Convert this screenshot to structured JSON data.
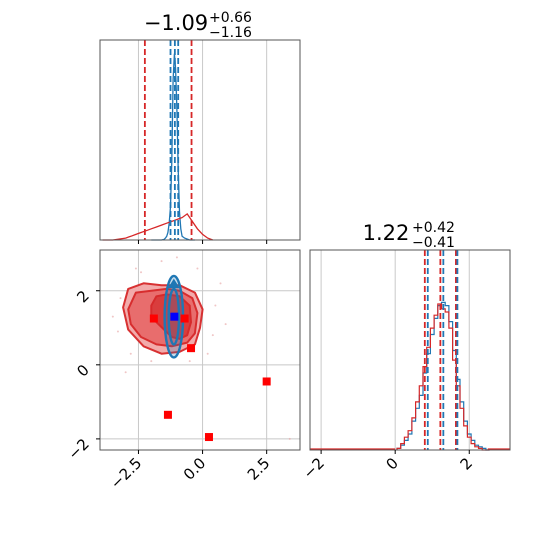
{
  "chart_data": {
    "type": "corner",
    "colors": {
      "blue": "#1f77b4",
      "red": "#d62728",
      "marker_red": "#ff0000",
      "marker_blue": "#0000ff",
      "grid": "#c8c8c8"
    },
    "panels": [
      {
        "kind": "histogram",
        "title": {
          "value": "−1.09",
          "sup": "+0.66",
          "sub": "−1.16"
        },
        "xlim": [
          -4.0,
          3.8
        ],
        "series": [
          {
            "name": "blue",
            "bin_centers": [
              -2.0,
              -1.8,
              -1.6,
              -1.5,
              -1.45,
              -1.4,
              -1.35,
              -1.3,
              -1.25,
              -1.2,
              -1.15,
              -1.1,
              -1.05,
              -1.0,
              -0.95,
              -0.9,
              -0.85,
              -0.8,
              -0.7,
              -0.5,
              -0.3
            ],
            "counts": [
              0,
              0,
              0,
              0.3,
              1,
              2,
              4,
              9,
              18,
              42,
              86,
              100,
              92,
              70,
              38,
              15,
              6,
              2,
              1,
              0,
              0
            ]
          },
          {
            "name": "red",
            "bin_centers": [
              -3.9,
              -3.5,
              -3.0,
              -2.8,
              -2.6,
              -2.4,
              -2.2,
              -2.0,
              -1.8,
              -1.6,
              -1.4,
              -1.2,
              -1.0,
              -0.8,
              -0.6,
              -0.4,
              -0.2,
              0.0,
              0.2,
              0.4
            ],
            "counts": [
              0,
              0,
              1,
              2,
              3,
              4,
              5,
              6,
              7,
              8,
              9,
              10,
              11,
              12,
              14,
              10,
              6,
              3,
              1,
              0
            ]
          }
        ],
        "vlines": [
          {
            "value": -2.25,
            "color": "red"
          },
          {
            "value": -0.43,
            "color": "red"
          },
          {
            "value": -1.25,
            "color": "blue"
          },
          {
            "value": -1.08,
            "color": "blue"
          },
          {
            "value": -0.95,
            "color": "blue"
          }
        ]
      },
      {
        "kind": "scatter2d",
        "xlim": [
          -4.0,
          3.8
        ],
        "ylim": [
          -2.3,
          3.1
        ],
        "xticks": [
          -2.5,
          0.0,
          2.5
        ],
        "xtick_labels": [
          "−2.5",
          "0.0",
          "2.5"
        ],
        "yticks": [
          -2,
          0,
          2
        ],
        "ytick_labels": [
          "−2",
          "0",
          "2"
        ],
        "red_contours": [
          {
            "level": "outer",
            "points": [
              [
                -3.1,
                1.55
              ],
              [
                -2.9,
                2.05
              ],
              [
                -2.3,
                2.2
              ],
              [
                -1.6,
                2.15
              ],
              [
                -0.9,
                2.15
              ],
              [
                -0.3,
                1.95
              ],
              [
                0.0,
                1.5
              ],
              [
                -0.1,
                1.0
              ],
              [
                -0.3,
                0.55
              ],
              [
                -0.9,
                0.35
              ],
              [
                -1.6,
                0.3
              ],
              [
                -2.3,
                0.5
              ],
              [
                -2.9,
                0.95
              ]
            ]
          },
          {
            "level": "middle",
            "points": [
              [
                -2.9,
                1.5
              ],
              [
                -2.6,
                1.95
              ],
              [
                -2.0,
                2.0
              ],
              [
                -1.4,
                2.05
              ],
              [
                -0.9,
                2.0
              ],
              [
                -0.4,
                1.8
              ],
              [
                -0.2,
                1.4
              ],
              [
                -0.3,
                0.85
              ],
              [
                -0.6,
                0.6
              ],
              [
                -1.2,
                0.5
              ],
              [
                -1.8,
                0.55
              ],
              [
                -2.4,
                0.75
              ],
              [
                -2.8,
                1.1
              ]
            ]
          },
          {
            "level": "inner",
            "points": [
              [
                -2.0,
                1.6
              ],
              [
                -1.8,
                1.85
              ],
              [
                -1.4,
                1.9
              ],
              [
                -0.9,
                1.85
              ],
              [
                -0.5,
                1.6
              ],
              [
                -0.45,
                1.15
              ],
              [
                -0.6,
                0.8
              ],
              [
                -0.9,
                0.7
              ],
              [
                -1.2,
                0.75
              ],
              [
                -1.5,
                0.95
              ],
              [
                -1.8,
                1.15
              ],
              [
                -2.0,
                1.35
              ]
            ]
          }
        ],
        "blue_contours": [
          {
            "level": "outer",
            "cx": -1.12,
            "cy": 1.3,
            "rx": 0.36,
            "ry": 1.1
          },
          {
            "level": "inner",
            "cx": -1.12,
            "cy": 1.3,
            "rx": 0.2,
            "ry": 0.75
          }
        ],
        "blue_peak": [
          -1.12,
          2.3
        ],
        "red_markers": [
          [
            -1.9,
            1.25
          ],
          [
            -0.7,
            1.25
          ],
          [
            -0.45,
            0.45
          ],
          [
            -1.35,
            -1.35
          ],
          [
            0.25,
            -1.95
          ],
          [
            2.5,
            -0.45
          ]
        ],
        "blue_markers": [
          [
            -1.1,
            1.3
          ]
        ],
        "scatter_dots": [
          [
            -3.2,
            1.8
          ],
          [
            -3.3,
            0.9
          ],
          [
            -2.6,
            2.6
          ],
          [
            -1.6,
            2.8
          ],
          [
            -0.2,
            2.6
          ],
          [
            0.5,
            1.6
          ],
          [
            0.4,
            0.8
          ],
          [
            -2.8,
            0.3
          ],
          [
            -2.0,
            0.1
          ],
          [
            -0.5,
            0.1
          ],
          [
            -3.5,
            1.3
          ],
          [
            -1.0,
            2.9
          ],
          [
            0.7,
            2.2
          ],
          [
            -2.4,
            2.5
          ],
          [
            0.2,
            0.3
          ],
          [
            3.4,
            -2.0
          ],
          [
            -3.0,
            -0.2
          ],
          [
            0.9,
            1.1
          ]
        ]
      },
      {
        "kind": "histogram",
        "title": {
          "value": "1.22",
          "sup": "+0.42",
          "sub": "−0.41"
        },
        "xlim": [
          -2.3,
          3.1
        ],
        "xticks": [
          -2,
          0,
          2
        ],
        "xtick_labels": [
          "−2",
          "0",
          "2"
        ],
        "series": [
          {
            "name": "blue",
            "bin_centers": [
              0.1,
              0.2,
              0.3,
              0.4,
              0.5,
              0.6,
              0.7,
              0.8,
              0.9,
              1.0,
              1.1,
              1.2,
              1.3,
              1.4,
              1.5,
              1.6,
              1.7,
              1.8,
              1.9,
              2.0,
              2.1,
              2.2,
              2.3,
              2.4,
              2.5
            ],
            "counts": [
              1,
              3,
              6,
              10,
              18,
              26,
              34,
              48,
              60,
              72,
              82,
              90,
              92,
              90,
              80,
              62,
              44,
              30,
              18,
              10,
              6,
              3,
              2,
              1,
              0
            ]
          },
          {
            "name": "red",
            "bin_centers": [
              0.1,
              0.2,
              0.3,
              0.4,
              0.5,
              0.6,
              0.7,
              0.8,
              0.9,
              1.0,
              1.1,
              1.2,
              1.3,
              1.4,
              1.5,
              1.6,
              1.7,
              1.8,
              1.9,
              2.0,
              2.1,
              2.2,
              2.3,
              2.4,
              2.5
            ],
            "counts": [
              1,
              4,
              8,
              12,
              20,
              30,
              40,
              52,
              64,
              76,
              84,
              91,
              88,
              86,
              76,
              56,
              40,
              26,
              15,
              8,
              4,
              2,
              1,
              0,
              0
            ]
          }
        ],
        "vlines": [
          {
            "value": 0.8,
            "color": "red"
          },
          {
            "value": 0.88,
            "color": "blue"
          },
          {
            "value": 1.22,
            "color": "red"
          },
          {
            "value": 1.3,
            "color": "blue"
          },
          {
            "value": 1.64,
            "color": "red"
          },
          {
            "value": 1.68,
            "color": "blue"
          }
        ]
      }
    ]
  }
}
